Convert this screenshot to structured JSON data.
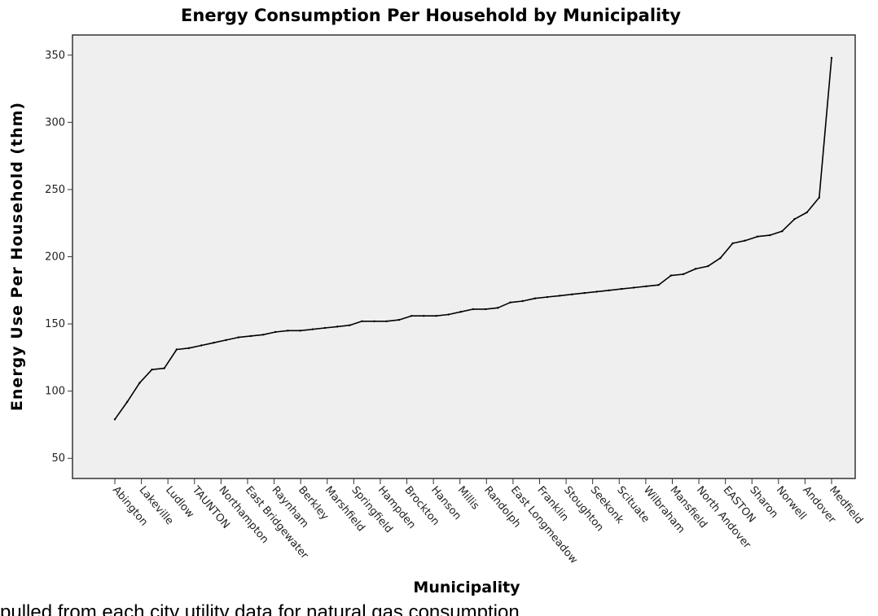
{
  "caption": "pulled from each city utility data for natural gas consumption",
  "chart_data": {
    "type": "line",
    "title": "Energy Consumption Per Household by Municipality",
    "xlabel": "Municipality",
    "ylabel": "Energy Use Per Household (thm)",
    "ylim": [
      35,
      365
    ],
    "yticks": [
      50,
      100,
      150,
      200,
      250,
      300,
      350
    ],
    "grid": false,
    "legend": "none",
    "line_color": "#000000",
    "plot_background": "#efefef",
    "x_tick_labels": [
      "Abington",
      "Lakeville",
      "Ludlow",
      "TAUNTON",
      "Northampton",
      "East Bridgewater",
      "Raynham",
      "Berkley",
      "Marshfield",
      "Springfield",
      "Hampden",
      "Brockton",
      "Hanson",
      "Millis",
      "Randolph",
      "East Longmeadow",
      "Franklin",
      "Stoughton",
      "Seekonk",
      "Scituate",
      "Wilbraham",
      "Mansfield",
      "North Andover",
      "EASTON",
      "Sharon",
      "Norwell",
      "Andover",
      "Medfield"
    ],
    "values": [
      79,
      92,
      106,
      116,
      117,
      131,
      132,
      134,
      136,
      138,
      140,
      141,
      142,
      144,
      145,
      145,
      146,
      147,
      148,
      149,
      152,
      152,
      152,
      153,
      156,
      156,
      156,
      157,
      159,
      161,
      161,
      162,
      166,
      167,
      169,
      170,
      171,
      172,
      173,
      174,
      175,
      176,
      177,
      178,
      179,
      186,
      187,
      191,
      193,
      199,
      210,
      212,
      215,
      216,
      219,
      228,
      233,
      244,
      348
    ]
  }
}
